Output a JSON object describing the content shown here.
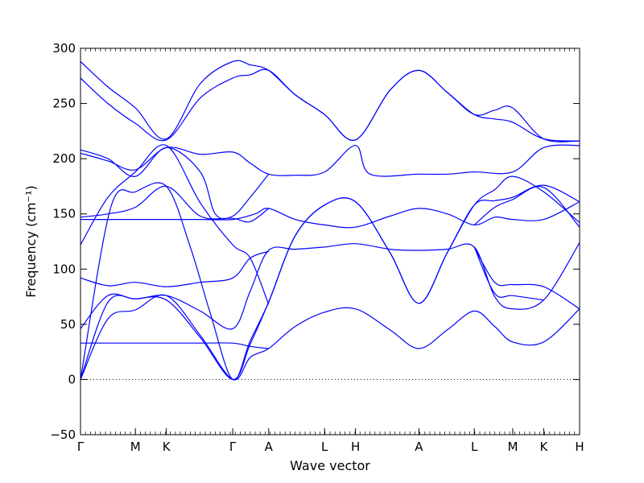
{
  "chart_data": {
    "type": "line",
    "xlabel": "Wave vector",
    "ylabel": "Frequency (cm⁻¹)",
    "ylim": [
      -50,
      300
    ],
    "yticks": [
      -50,
      0,
      50,
      100,
      150,
      200,
      250,
      300
    ],
    "xlim": [
      0,
      16
    ],
    "xticks": [
      {
        "label": "Γ",
        "x": 0
      },
      {
        "label": "M",
        "x": 1.1
      },
      {
        "label": "K",
        "x": 1.72
      },
      {
        "label": "Γ",
        "x": 3.05
      },
      {
        "label": "A",
        "x": 3.77
      },
      {
        "label": "L",
        "x": 4.89
      },
      {
        "label": "H",
        "x": 5.51
      },
      {
        "label": "A",
        "x": 6.78
      },
      {
        "label": "L",
        "x": 7.89
      },
      {
        "label": "M",
        "x": 8.66
      },
      {
        "label": "K",
        "x": 9.28
      },
      {
        "label": "H",
        "x": 10.0
      }
    ],
    "zero_line": {
      "y": 0,
      "style": "dotted"
    },
    "grid": false,
    "line_color": "#0000ff",
    "series": [
      {
        "points": [
          [
            0,
            0
          ],
          [
            0.55,
            55
          ],
          [
            1.1,
            63
          ],
          [
            1.72,
            76
          ],
          [
            2.4,
            40
          ],
          [
            3.05,
            0
          ],
          [
            3.4,
            20
          ],
          [
            3.77,
            28
          ],
          [
            4.3,
            48
          ],
          [
            4.89,
            61
          ],
          [
            5.51,
            64
          ],
          [
            6.2,
            45
          ],
          [
            6.78,
            28
          ],
          [
            7.35,
            45
          ],
          [
            7.89,
            62
          ],
          [
            8.3,
            48
          ],
          [
            8.66,
            34
          ],
          [
            9.28,
            34
          ],
          [
            10.0,
            64
          ]
        ]
      },
      {
        "points": [
          [
            0,
            0
          ],
          [
            0.55,
            70
          ],
          [
            1.1,
            73
          ],
          [
            1.72,
            72
          ],
          [
            2.4,
            38
          ],
          [
            3.05,
            0
          ],
          [
            3.4,
            32
          ],
          [
            3.77,
            70
          ],
          [
            4.3,
            130
          ],
          [
            4.89,
            158
          ],
          [
            5.51,
            161
          ],
          [
            6.2,
            115
          ],
          [
            6.78,
            69
          ],
          [
            7.35,
            115
          ],
          [
            7.89,
            158
          ],
          [
            8.3,
            172
          ],
          [
            8.66,
            184
          ],
          [
            9.28,
            170
          ],
          [
            10.0,
            142
          ]
        ]
      },
      {
        "points": [
          [
            0,
            0
          ],
          [
            0.6,
            155
          ],
          [
            1.1,
            170
          ],
          [
            1.72,
            175
          ],
          [
            2.2,
            120
          ],
          [
            2.6,
            60
          ],
          [
            3.05,
            0
          ],
          [
            3.4,
            35
          ],
          [
            3.77,
            70
          ],
          [
            4.3,
            130
          ],
          [
            4.89,
            158
          ],
          [
            5.51,
            161
          ],
          [
            6.2,
            115
          ],
          [
            6.78,
            69
          ],
          [
            7.35,
            115
          ],
          [
            7.89,
            158
          ],
          [
            8.3,
            162
          ],
          [
            8.66,
            165
          ],
          [
            9.28,
            176
          ],
          [
            10.0,
            161
          ]
        ]
      },
      {
        "points": [
          [
            0,
            33
          ],
          [
            1.1,
            33
          ],
          [
            1.72,
            33
          ],
          [
            2.4,
            33
          ],
          [
            3.05,
            33
          ],
          [
            3.4,
            30
          ],
          [
            3.77,
            28
          ]
        ]
      },
      {
        "points": [
          [
            0,
            46
          ],
          [
            0.55,
            76
          ],
          [
            1.1,
            73
          ],
          [
            1.72,
            76
          ],
          [
            2.4,
            62
          ],
          [
            3.05,
            46
          ],
          [
            3.4,
            80
          ],
          [
            3.77,
            117
          ],
          [
            4.3,
            118
          ],
          [
            4.89,
            120
          ],
          [
            5.51,
            123
          ],
          [
            6.2,
            118
          ],
          [
            6.78,
            117
          ],
          [
            7.35,
            118
          ],
          [
            7.89,
            120
          ],
          [
            8.3,
            75
          ],
          [
            8.66,
            64
          ],
          [
            9.28,
            72
          ],
          [
            10.0,
            124
          ]
        ]
      },
      {
        "points": [
          [
            0,
            92
          ],
          [
            0.55,
            85
          ],
          [
            1.1,
            88
          ],
          [
            1.72,
            84
          ],
          [
            2.4,
            88
          ],
          [
            3.05,
            92
          ],
          [
            3.4,
            110
          ],
          [
            3.77,
            116
          ]
        ]
      },
      {
        "points": [
          [
            0,
            122
          ],
          [
            0.55,
            165
          ],
          [
            1.1,
            188
          ],
          [
            1.72,
            212
          ],
          [
            2.4,
            160
          ],
          [
            3.05,
            122
          ],
          [
            3.4,
            110
          ],
          [
            3.77,
            68
          ]
        ]
      },
      {
        "points": [
          [
            7.89,
            120
          ],
          [
            8.3,
            88
          ],
          [
            8.66,
            86
          ],
          [
            9.28,
            84
          ],
          [
            10.0,
            64
          ]
        ]
      },
      {
        "points": [
          [
            7.89,
            120
          ],
          [
            8.3,
            78
          ],
          [
            8.66,
            76
          ],
          [
            9.28,
            72
          ]
        ]
      },
      {
        "points": [
          [
            0,
            145
          ],
          [
            0.55,
            145
          ],
          [
            1.1,
            145
          ],
          [
            1.72,
            145
          ],
          [
            2.4,
            145
          ],
          [
            3.05,
            145
          ],
          [
            3.5,
            150
          ],
          [
            3.77,
            155
          ],
          [
            4.3,
            145
          ],
          [
            4.89,
            140
          ],
          [
            5.51,
            138
          ],
          [
            6.2,
            148
          ],
          [
            6.78,
            155
          ],
          [
            7.35,
            150
          ],
          [
            7.89,
            140
          ],
          [
            8.3,
            147
          ],
          [
            8.66,
            145
          ],
          [
            9.28,
            145
          ],
          [
            10.0,
            161
          ]
        ]
      },
      {
        "points": [
          [
            0,
            147
          ],
          [
            0.55,
            150
          ],
          [
            1.1,
            156
          ],
          [
            1.72,
            175
          ],
          [
            2.4,
            148
          ],
          [
            3.05,
            146
          ],
          [
            3.4,
            143
          ],
          [
            3.77,
            155
          ]
        ]
      },
      {
        "points": [
          [
            7.89,
            140
          ],
          [
            8.3,
            156
          ],
          [
            8.66,
            163
          ],
          [
            9.28,
            174
          ],
          [
            10.0,
            138
          ]
        ]
      },
      {
        "points": [
          [
            0,
            205
          ],
          [
            0.55,
            198
          ],
          [
            1.1,
            190
          ],
          [
            1.72,
            210
          ],
          [
            2.4,
            204
          ],
          [
            3.05,
            206
          ],
          [
            3.4,
            196
          ],
          [
            3.77,
            186
          ],
          [
            4.3,
            185
          ],
          [
            4.89,
            188
          ],
          [
            5.51,
            212
          ],
          [
            5.8,
            186
          ],
          [
            6.78,
            186
          ],
          [
            7.35,
            186
          ],
          [
            7.89,
            188
          ],
          [
            8.66,
            188
          ],
          [
            9.28,
            210
          ],
          [
            10.0,
            212
          ]
        ]
      },
      {
        "points": [
          [
            0,
            208
          ],
          [
            0.55,
            200
          ],
          [
            1.1,
            184
          ],
          [
            1.72,
            210
          ],
          [
            2.4,
            188
          ],
          [
            2.7,
            150
          ],
          [
            3.05,
            148
          ],
          [
            3.4,
            165
          ],
          [
            3.77,
            186
          ]
        ]
      },
      {
        "points": [
          [
            0,
            288
          ],
          [
            0.55,
            265
          ],
          [
            1.1,
            246
          ],
          [
            1.72,
            218
          ],
          [
            2.4,
            268
          ],
          [
            3.05,
            288
          ],
          [
            3.4,
            285
          ],
          [
            3.77,
            280
          ],
          [
            4.3,
            258
          ],
          [
            4.89,
            240
          ],
          [
            5.51,
            217
          ],
          [
            6.2,
            262
          ],
          [
            6.78,
            280
          ],
          [
            7.35,
            260
          ],
          [
            7.89,
            240
          ],
          [
            8.3,
            244
          ],
          [
            8.66,
            246
          ],
          [
            9.28,
            218
          ],
          [
            10.0,
            216
          ]
        ]
      },
      {
        "points": [
          [
            0,
            273
          ],
          [
            0.55,
            250
          ],
          [
            1.1,
            232
          ],
          [
            1.72,
            217
          ],
          [
            2.4,
            255
          ],
          [
            3.05,
            273
          ],
          [
            3.4,
            276
          ],
          [
            3.77,
            280
          ],
          [
            4.3,
            258
          ],
          [
            4.89,
            240
          ],
          [
            5.51,
            217
          ],
          [
            6.2,
            262
          ],
          [
            6.78,
            280
          ],
          [
            7.35,
            260
          ],
          [
            7.89,
            240
          ],
          [
            8.3,
            236
          ],
          [
            8.66,
            233
          ],
          [
            9.28,
            218
          ],
          [
            10.0,
            216
          ]
        ]
      }
    ]
  }
}
